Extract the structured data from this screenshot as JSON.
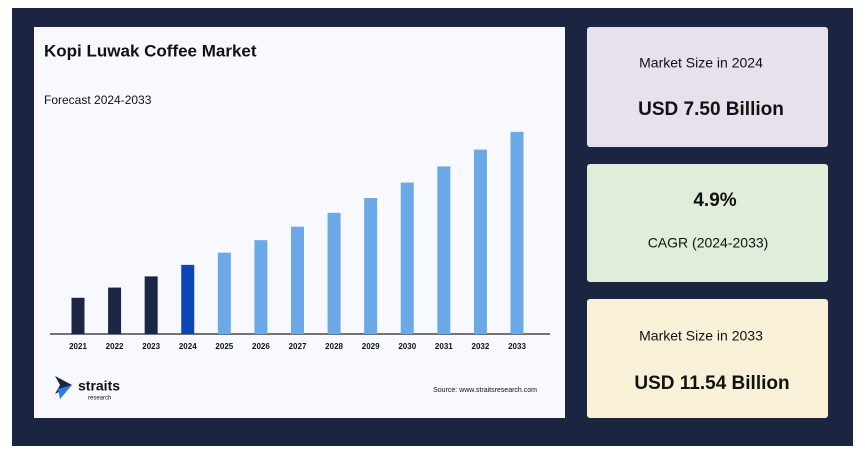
{
  "chart_data": {
    "type": "bar",
    "title": "Kopi Luwak Coffee Market",
    "subtitle": "Forecast 2024-2033",
    "categories": [
      "2021",
      "2022",
      "2023",
      "2024",
      "2025",
      "2026",
      "2027",
      "2028",
      "2029",
      "2030",
      "2031",
      "2032",
      "2033"
    ],
    "values": [
      6.5,
      6.81,
      7.15,
      7.5,
      7.87,
      8.25,
      8.66,
      9.08,
      9.53,
      10.0,
      10.49,
      11.0,
      11.54
    ],
    "colors": [
      "#1b2644",
      "#1b2644",
      "#1b2644",
      "#0b46b4",
      "#6aa8e6",
      "#6aa8e6",
      "#6aa8e6",
      "#6aa8e6",
      "#6aa8e6",
      "#6aa8e6",
      "#6aa8e6",
      "#6aa8e6",
      "#6aa8e6"
    ],
    "ylim": [
      5.4,
      11.9
    ]
  },
  "cards": [
    {
      "label": "Market Size in 2024",
      "value": "USD 7.50 Billion"
    },
    {
      "label": "CAGR (2024-2033)",
      "value": "4.9%"
    },
    {
      "label": "Market Size in 2033",
      "value": "USD 11.54 Billion"
    }
  ],
  "logo": {
    "name": "straits",
    "tagline": "research"
  },
  "source": "Source: www.straitsresearch.com"
}
